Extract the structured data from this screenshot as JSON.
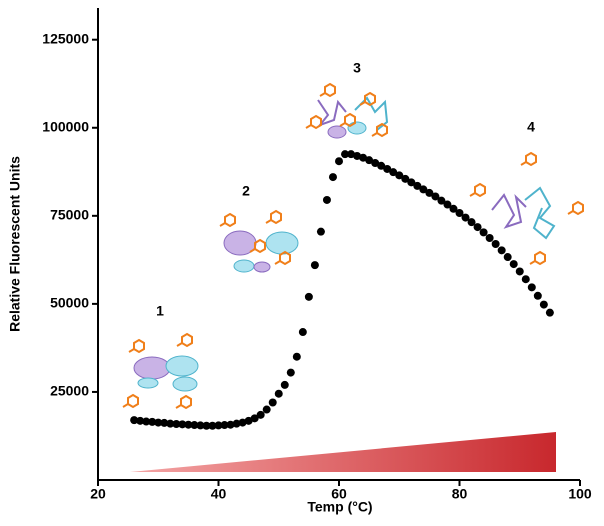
{
  "chart_data": {
    "type": "scatter",
    "x_label": "Temp (°C)",
    "y_label": "Relative Fluorescent Units",
    "annotations": [
      "1",
      "2",
      "3",
      "4"
    ],
    "xlim": [
      20,
      100
    ],
    "xticks": [
      20,
      40,
      60,
      80,
      100
    ],
    "ylim": [
      0,
      134000
    ],
    "yticks": [
      25000,
      50000,
      75000,
      100000,
      125000
    ],
    "series": [
      {
        "color": "#000000",
        "x": [
          26,
          27,
          28,
          29,
          30,
          31,
          32,
          33,
          34,
          35,
          36,
          37,
          38,
          39,
          40,
          41,
          42,
          43,
          44,
          45,
          46,
          47,
          48,
          49,
          50,
          51,
          52,
          53,
          54,
          55,
          56,
          57,
          58,
          59,
          60,
          61,
          62,
          63,
          64,
          65,
          66,
          67,
          68,
          69,
          70,
          71,
          72,
          73,
          74,
          75,
          76,
          77,
          78,
          79,
          80,
          81,
          82,
          83,
          84,
          85,
          86,
          87,
          88,
          89,
          90,
          91,
          92,
          93,
          94,
          95
        ],
        "values": [
          17000,
          16800,
          16600,
          16500,
          16300,
          16200,
          16000,
          15900,
          15800,
          15700,
          15600,
          15500,
          15400,
          15400,
          15500,
          15600,
          15700,
          16000,
          16300,
          16800,
          17500,
          18500,
          20000,
          22000,
          24500,
          27000,
          30500,
          35000,
          42000,
          52000,
          61000,
          70500,
          79500,
          86000,
          90500,
          92500,
          92500,
          92000,
          91500,
          90800,
          90000,
          89200,
          88300,
          87400,
          86500,
          85500,
          84500,
          83500,
          82500,
          81500,
          80500,
          79300,
          78200,
          77000,
          75800,
          74500,
          73200,
          71800,
          70300,
          68700,
          67000,
          65200,
          63300,
          61300,
          59200,
          57000,
          54700,
          52300,
          49800,
          47500
        ]
      }
    ]
  }
}
